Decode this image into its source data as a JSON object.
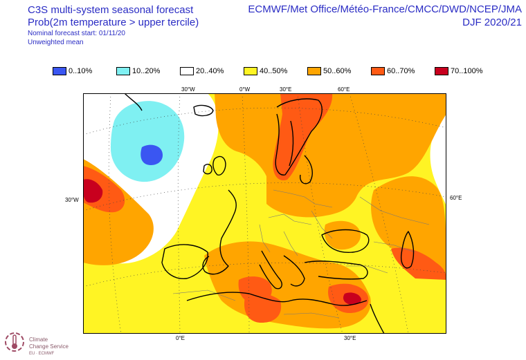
{
  "header": {
    "title_lines": [
      "C3S multi-system seasonal forecast",
      "Prob(2m temperature > upper tercile)"
    ],
    "sub_lines": [
      "Nominal forecast start: 01/11/20",
      "Unweighted mean"
    ],
    "source_line": "ECMWF/Met Office/Météo-France/CMCC/DWD/NCEP/JMA",
    "season_line": "DJF 2020/21"
  },
  "legend": [
    {
      "label": "0..10%",
      "color": "#3a56f2"
    },
    {
      "label": "10..20%",
      "color": "#7ff0f2"
    },
    {
      "label": "20..40%",
      "color": "#ffffff"
    },
    {
      "label": "40..50%",
      "color": "#fff424"
    },
    {
      "label": "50..60%",
      "color": "#ffa500"
    },
    {
      "label": "60..70%",
      "color": "#ff5a14"
    },
    {
      "label": "70..100%",
      "color": "#c8001e"
    }
  ],
  "coordinate_labels": {
    "top": [
      "30°W",
      "0°W",
      "30°E",
      "60°E"
    ],
    "left": "30°W",
    "right": "60°E",
    "bottom": [
      "0°E",
      "30°E"
    ]
  },
  "logo": {
    "line1": "Climate",
    "line2": "Change Service",
    "line3": "EU  ·  ECMWF"
  }
}
